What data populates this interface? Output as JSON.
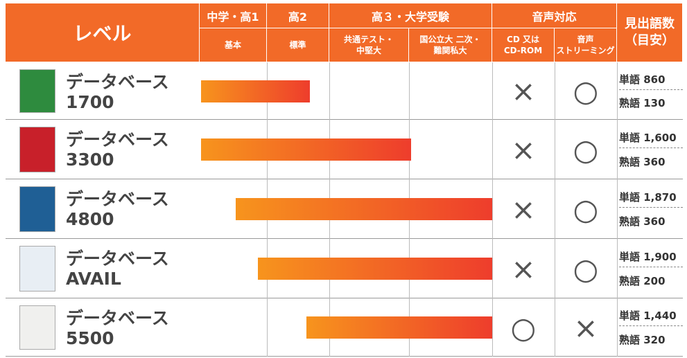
{
  "header": {
    "level": "レベル",
    "groups": [
      "中学・高1",
      "高2",
      "高３・大学受験",
      "音声対応"
    ],
    "subs": [
      "基本",
      "標準",
      "共通テスト・\n中堅大",
      "国公立大 二次・\n難関私大",
      "CD 又は\nCD-ROM",
      "音声\nストリーミング"
    ],
    "count": "見出語数\n（目安）"
  },
  "rows": [
    {
      "title": "データベース",
      "edition": "1700",
      "cd": "×",
      "stream": "○",
      "words": "単語 860",
      "idioms": "熟語 130"
    },
    {
      "title": "データベース",
      "edition": "3300",
      "cd": "×",
      "stream": "○",
      "words": "単語 1,600",
      "idioms": "熟語 360"
    },
    {
      "title": "データベース",
      "edition": "4800",
      "cd": "×",
      "stream": "○",
      "words": "単語 1,870",
      "idioms": "熟語 360"
    },
    {
      "title": "データベース",
      "edition": "AVAIL",
      "cd": "×",
      "stream": "○",
      "words": "単語 1,900",
      "idioms": "熟語 200"
    },
    {
      "title": "データベース",
      "edition": "5500",
      "cd": "○",
      "stream": "×",
      "words": "単語 1,440",
      "idioms": "熟語 320"
    }
  ]
}
